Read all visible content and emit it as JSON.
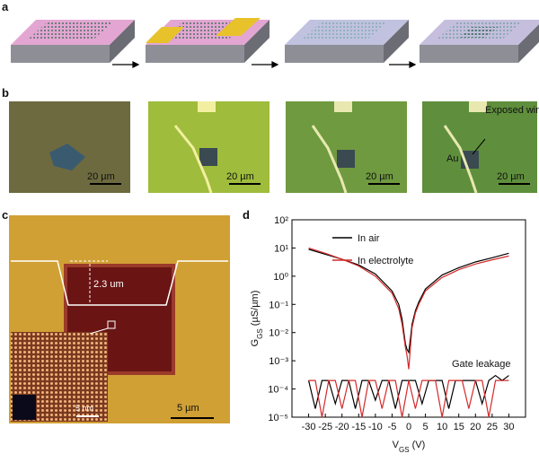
{
  "panels": {
    "a": {
      "label": "a"
    },
    "b": {
      "label": "b",
      "scale_bars": [
        "20 µm",
        "20 µm",
        "20 µm",
        "20 µm"
      ],
      "annotations": [
        "Exposed window",
        "Au"
      ]
    },
    "c": {
      "label": "c",
      "depth": "2.3 um",
      "scale_bar": "5 µm",
      "inset_scale_bar": "5 nm"
    },
    "d": {
      "label": "d"
    }
  },
  "chart_data": {
    "type": "line",
    "ylog": true,
    "xlabel": {
      "main": "V",
      "sub": "GS",
      "unit": " (V)"
    },
    "ylabel": {
      "main": "G",
      "sub": "GS",
      "unit": " (µS/µm)"
    },
    "xlim": [
      -35,
      35
    ],
    "ylim": [
      1e-05,
      100
    ],
    "xticks": [
      -30,
      -25,
      -20,
      -15,
      -10,
      -5,
      0,
      5,
      10,
      15,
      20,
      25,
      30
    ],
    "yticks": [
      {
        "value": 1e-05,
        "label": "10⁻⁵"
      },
      {
        "value": 0.0001,
        "label": "10⁻⁴"
      },
      {
        "value": 0.001,
        "label": "10⁻³"
      },
      {
        "value": 0.01,
        "label": "10⁻²"
      },
      {
        "value": 0.1,
        "label": "10⁻¹"
      },
      {
        "value": 1,
        "label": "10⁰"
      },
      {
        "value": 10,
        "label": "10¹"
      },
      {
        "value": 100,
        "label": "10²"
      }
    ],
    "legend": "upper left",
    "x": [
      -30,
      -25,
      -20,
      -15,
      -10,
      -5,
      -3,
      -2,
      -1,
      -0.5,
      0,
      0.5,
      1,
      2,
      3,
      5,
      10,
      15,
      20,
      25,
      30
    ],
    "series": [
      {
        "name": "In air",
        "color": "#000000",
        "values": [
          9,
          6,
          4,
          2.5,
          1.2,
          0.3,
          0.1,
          0.03,
          0.004,
          0.0025,
          0.002,
          0.006,
          0.02,
          0.06,
          0.12,
          0.35,
          1.1,
          2,
          3.2,
          4.5,
          6.5
        ]
      },
      {
        "name": "In electrolyte",
        "color": "#d42a2a",
        "values": [
          10,
          6.5,
          4,
          2.3,
          1,
          0.25,
          0.07,
          0.02,
          0.003,
          0.0015,
          0.0005,
          0.003,
          0.015,
          0.05,
          0.1,
          0.3,
          0.9,
          1.7,
          2.7,
          3.8,
          5.2
        ]
      }
    ],
    "leakage": {
      "label": "Gate leakage",
      "x": [
        -30,
        -28,
        -26,
        -24,
        -22,
        -20,
        -18,
        -16,
        -14,
        -12,
        -10,
        -8,
        -6,
        -4,
        -2,
        0,
        2,
        4,
        6,
        8,
        10,
        12,
        14,
        16,
        18,
        20,
        22,
        24,
        26,
        28,
        30
      ],
      "series": [
        {
          "color": "#000000",
          "values": [
            0.0002,
            2e-05,
            0.0002,
            0.0002,
            3e-05,
            0.0002,
            0.0002,
            2e-05,
            0.0002,
            0.0002,
            4e-05,
            0.0002,
            0.0002,
            2e-05,
            0.0002,
            0.0002,
            0.0002,
            3e-05,
            0.0002,
            0.0002,
            0.0002,
            2e-05,
            0.0002,
            0.0002,
            0.0002,
            0.0002,
            3e-05,
            0.0002,
            0.0003,
            0.0002,
            0.0003
          ]
        },
        {
          "color": "#d42a2a",
          "values": [
            0.0002,
            0.0002,
            1e-05,
            0.0002,
            0.0002,
            2e-05,
            0.0002,
            0.0002,
            1e-05,
            0.0002,
            0.0002,
            2e-05,
            0.0002,
            0.0002,
            1e-05,
            0.0002,
            2e-05,
            0.0002,
            0.0002,
            0.0002,
            1e-05,
            0.0002,
            0.0002,
            0.0002,
            2e-05,
            0.0002,
            0.0002,
            1e-05,
            0.0002,
            0.0002,
            0.0002
          ]
        }
      ]
    }
  }
}
